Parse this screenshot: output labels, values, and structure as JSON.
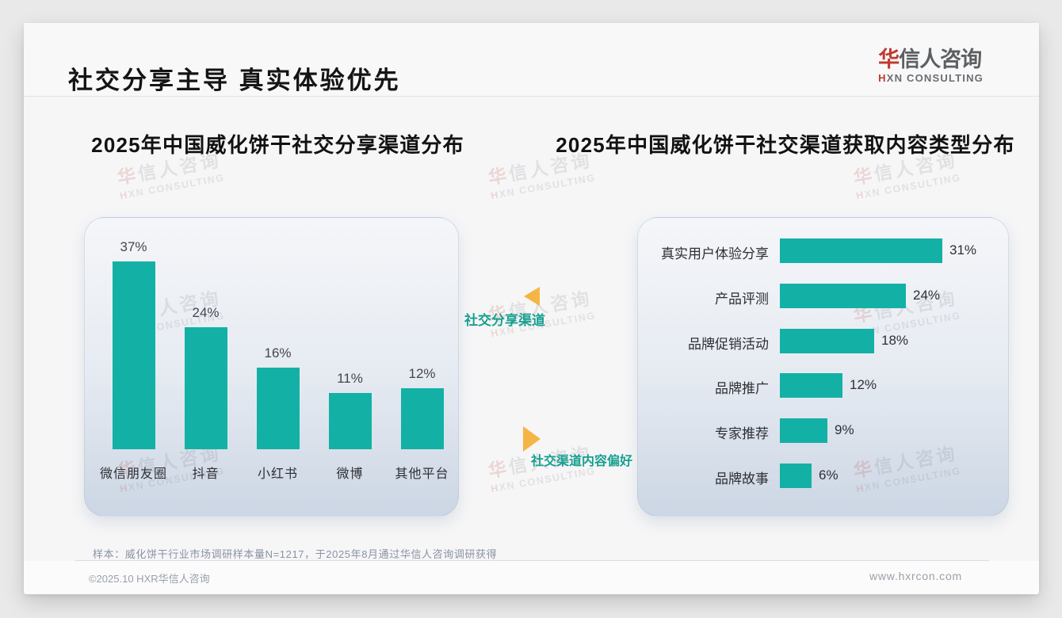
{
  "header": {
    "title": "社交分享主导 真实体验优先"
  },
  "logo": {
    "zh_accent": "华",
    "zh_rest": "信人咨询",
    "en_accent": "H",
    "en_rest": "XN CONSULTING"
  },
  "watermark": {
    "line1_accent": "华",
    "line1_rest": "信人咨询",
    "line2_accent": "H",
    "line2_rest": "XN CONSULTING"
  },
  "annotations": {
    "share_channel_label": "社交分享渠道",
    "content_preference_label": "社交渠道内容偏好"
  },
  "footer": {
    "sample_note": "样本：威化饼干行业市场调研样本量N=1217，于2025年8月通过华信人咨询调研获得",
    "copyright": "©2025.10 HXR华信人咨询",
    "website": "www.hxrcon.com"
  },
  "colors": {
    "bar_teal": "#13b1a5",
    "annotation_teal": "#18a090",
    "triangle_orange": "#f5b545",
    "logo_red": "#c13a2e"
  },
  "chart_data": [
    {
      "type": "bar",
      "orientation": "vertical",
      "title": "2025年中国威化饼干社交分享渠道分布",
      "categories": [
        "微信朋友圈",
        "抖音",
        "小红书",
        "微博",
        "其他平台"
      ],
      "values": [
        37,
        24,
        16,
        11,
        12
      ],
      "unit": "%",
      "value_labels": [
        "37%",
        "24%",
        "16%",
        "11%",
        "12%"
      ],
      "ylim": [
        0,
        40
      ],
      "grid": false,
      "legend": false
    },
    {
      "type": "bar",
      "orientation": "horizontal",
      "title": "2025年中国威化饼干社交渠道获取内容类型分布",
      "categories": [
        "真实用户体验分享",
        "产品评测",
        "品牌促销活动",
        "品牌推广",
        "专家推荐",
        "品牌故事"
      ],
      "values": [
        31,
        24,
        18,
        12,
        9,
        6
      ],
      "unit": "%",
      "value_labels": [
        "31%",
        "24%",
        "18%",
        "12%",
        "9%",
        "6%"
      ],
      "xlim": [
        0,
        35
      ],
      "grid": false,
      "legend": false
    }
  ]
}
